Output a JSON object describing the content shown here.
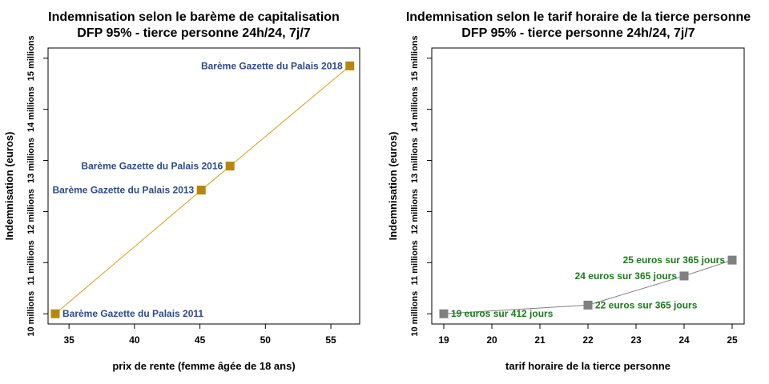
{
  "chart_data": [
    {
      "type": "line",
      "title": "Indemnisation selon le barème de capitalisation",
      "subtitle": "DFP 95% - tierce personne 24h/24, 7j/7",
      "xlabel": "prix de rente (femme âgée de 18 ans)",
      "ylabel": "Indemnisation (euros)",
      "xlim": [
        33.4,
        57.2
      ],
      "ylim": [
        9.8,
        15.2
      ],
      "x_ticks": [
        35,
        40,
        45,
        50,
        55
      ],
      "y_ticks": [
        10,
        11,
        12,
        13,
        14,
        15
      ],
      "y_tick_labels": [
        "10 millions",
        "11 millions",
        "12 millions",
        "13 millions",
        "14 millions",
        "15 millions"
      ],
      "line_color": "#d4a017",
      "marker_color": "#b8860b",
      "label_color": "#2c4a8c",
      "points": [
        {
          "x": 33.95,
          "y": 10.0,
          "label": "Barème Gazette du Palais 2011",
          "side": "right"
        },
        {
          "x": 45.1,
          "y": 12.42,
          "label": "Barème Gazette du Palais 2013",
          "side": "left"
        },
        {
          "x": 47.3,
          "y": 12.89,
          "label": "Barème Gazette du Palais 2016",
          "side": "left"
        },
        {
          "x": 56.45,
          "y": 14.85,
          "label": "Barème Gazette du Palais 2018",
          "side": "left"
        }
      ]
    },
    {
      "type": "line",
      "title": "Indemnisation selon le tarif horaire de la tierce personne",
      "subtitle": "DFP 95% - tierce personne 24h/24, 7j/7",
      "xlabel": "tarif horaire de la tierce personne",
      "ylabel": "Indemnisation (euros)",
      "xlim": [
        18.75,
        25.25
      ],
      "ylim": [
        9.8,
        15.2
      ],
      "x_ticks": [
        19,
        20,
        21,
        22,
        23,
        24,
        25
      ],
      "y_ticks": [
        10,
        11,
        12,
        13,
        14,
        15
      ],
      "y_tick_labels": [
        "10 millions",
        "11 millions",
        "12 millions",
        "13 millions",
        "14 millions",
        "15 millions"
      ],
      "line_color": "#808080",
      "marker_color": "#808080",
      "label_color": "#1a7a1a",
      "points": [
        {
          "x": 19,
          "y": 10.0,
          "label": "19 euros sur 412 jours",
          "side": "right"
        },
        {
          "x": 22,
          "y": 10.17,
          "label": "22 euros sur 365 jours",
          "side": "right"
        },
        {
          "x": 24,
          "y": 10.74,
          "label": "24 euros sur 365 jours",
          "side": "left"
        },
        {
          "x": 25,
          "y": 11.05,
          "label": "25 euros sur 365 jours",
          "side": "left"
        }
      ]
    }
  ]
}
